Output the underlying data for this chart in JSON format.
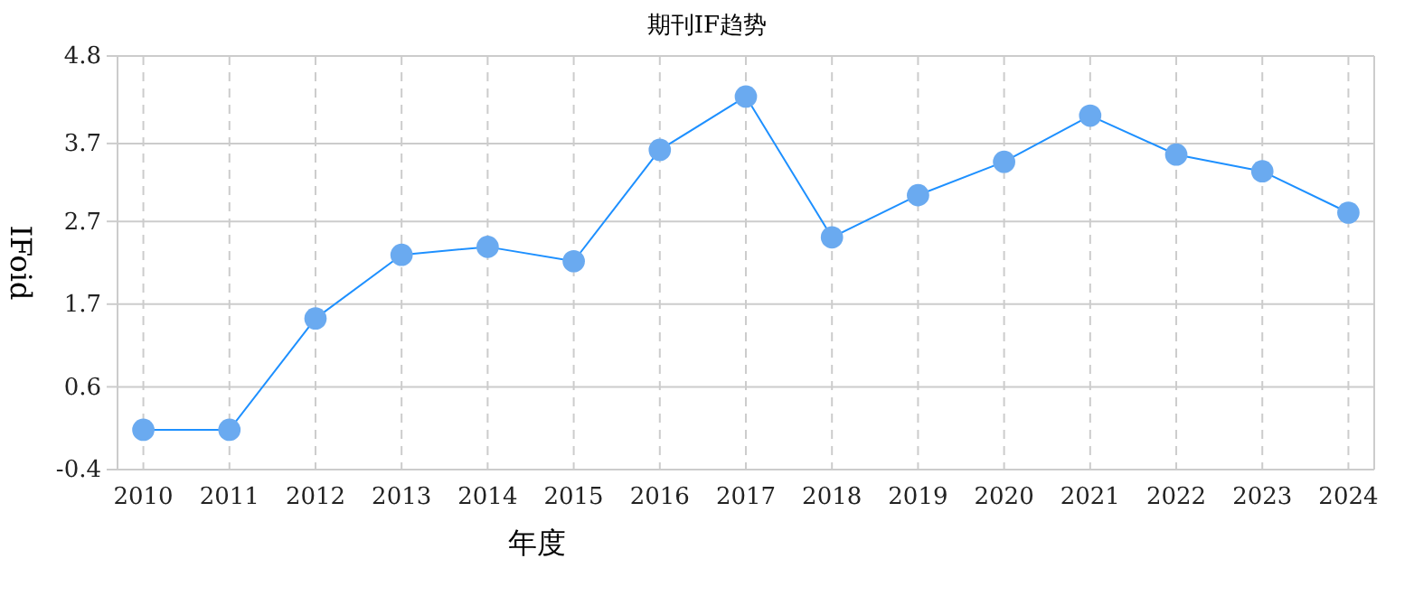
{
  "chart_data": {
    "type": "line",
    "title": "期刊IF趋势",
    "xlabel": "年度",
    "ylabel": "IFoid",
    "categories": [
      "2010",
      "2011",
      "2012",
      "2013",
      "2014",
      "2015",
      "2016",
      "2017",
      "2018",
      "2019",
      "2020",
      "2021",
      "2022",
      "2023",
      "2024"
    ],
    "series": [
      {
        "color": "#1e90ff",
        "values": [
          0.1,
          0.1,
          1.5,
          2.3,
          2.4,
          2.22,
          3.62,
          4.29,
          2.52,
          3.05,
          3.47,
          4.05,
          3.56,
          3.35,
          2.83
        ]
      }
    ],
    "ylim": [
      -0.4,
      4.8
    ],
    "yticks": [
      {
        "value": -0.4,
        "label": "-0.4"
      },
      {
        "value": 0.64,
        "label": "0.6"
      },
      {
        "value": 1.68,
        "label": "1.7"
      },
      {
        "value": 2.72,
        "label": "2.7"
      },
      {
        "value": 3.7,
        "label": "3.7"
      },
      {
        "value": 4.8,
        "label": "4.8"
      }
    ],
    "grid": true,
    "marker": "circle",
    "line_style": "solid"
  }
}
